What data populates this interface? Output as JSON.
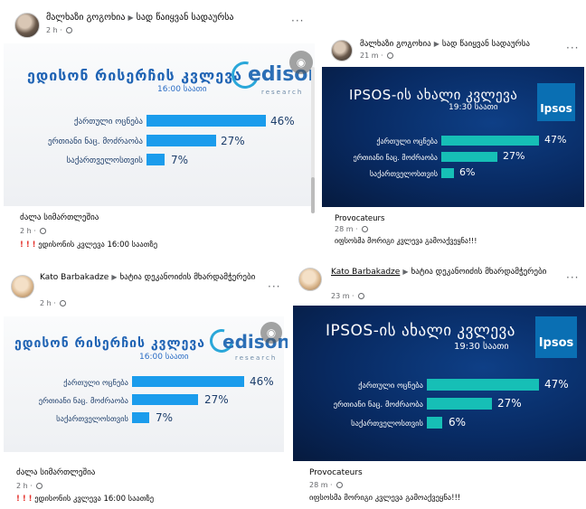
{
  "posts": [
    {
      "author": "მალხაზი გოგოხია",
      "group": "სად წაიყვან სადაურსა",
      "time": "2 h",
      "more": "···",
      "poll_title": "ედისონ რისერჩის კვლევა",
      "poll_time": "16:00 საათი",
      "logo": "edison",
      "logo_sub": "research",
      "caption_title": "ძალა სიმართლეშია",
      "caption_time": "2 h",
      "caption_text": "ედისონის კვლევა 16:00 საათზე"
    },
    {
      "author": "მალხაზი გოგოხია",
      "group": "სად წაიყვან სადაურსა",
      "time": "21 m",
      "more": "···",
      "poll_title": "IPSOS-ის ახალი კვლევა",
      "poll_time": "19:30 საათი",
      "logo": "Ipsos",
      "caption_title": "Provocateurs",
      "caption_time": "28 m",
      "caption_text": "იფსოსმა მორიგი კვლევა გამოაქვეყნა!!!"
    },
    {
      "author": "Kato Barbakadze",
      "group": "ხატია დეკანოიძის მხარდამჭერები",
      "time": "2 h",
      "more": "···",
      "poll_title": "ედისონ რისერჩის კვლევა",
      "poll_time": "16:00 საათი",
      "logo": "edison",
      "logo_sub": "research",
      "caption_title": "ძალა სიმართლეშია",
      "caption_time": "2 h",
      "caption_text": "ედისონის კვლევა 16:00 საათზე"
    },
    {
      "author": "Kato Barbakadze",
      "group": "ხატია დეკანოიძის მხარდამჭერები",
      "time": "23 m",
      "more": "···",
      "poll_title": "IPSOS-ის ახალი კვლევა",
      "poll_time": "19:30 საათი",
      "logo": "Ipsos",
      "caption_title": "Provocateurs",
      "caption_time": "28 m",
      "caption_text": "იფსოსმა მორიგი კვლევა გამოაქვეყნა!!!"
    }
  ],
  "edison_bars": [
    {
      "label": "ქართული ოცნება",
      "value": 46,
      "display": "46%"
    },
    {
      "label": "ერთიანი ნაც. მოძრაობა",
      "value": 27,
      "display": "27%"
    },
    {
      "label": "საქართველოსთვის",
      "value": 7,
      "display": "7%"
    }
  ],
  "ipsos_bars": [
    {
      "label": "ქართული ოცნება",
      "value": 47,
      "display": "47%"
    },
    {
      "label": "ერთიანი ნაც. მოძრაობა",
      "value": 27,
      "display": "27%"
    },
    {
      "label": "საქართველოსთვის",
      "value": 6,
      "display": "6%"
    }
  ],
  "icons": {
    "separator": "▶",
    "exclamation": "❗",
    "eye": "eye-icon"
  },
  "colors": {
    "edison_bar": "#1b9cec",
    "ipsos_bar": "#16bfb6",
    "ipsos_bg": "#082a62"
  }
}
